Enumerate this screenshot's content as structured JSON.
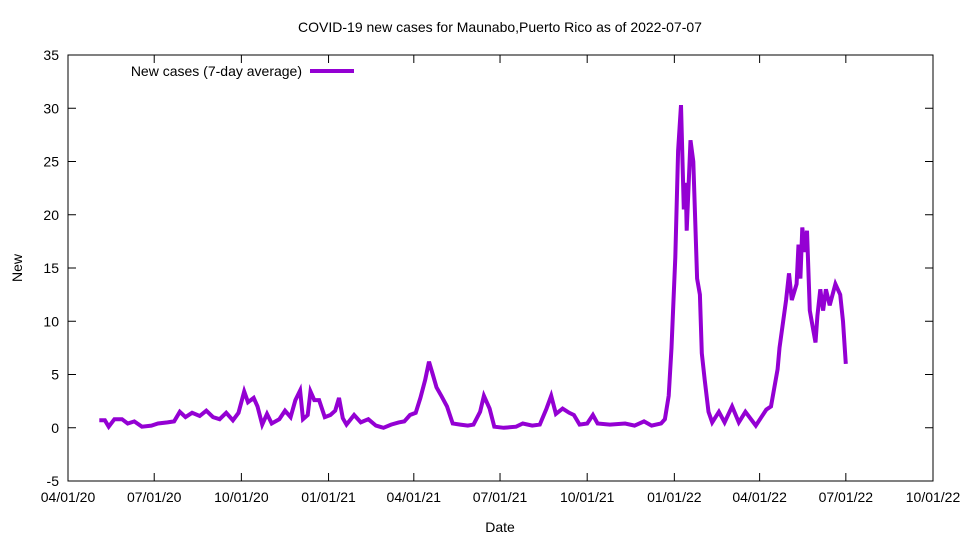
{
  "chart_data": {
    "type": "line",
    "title": "COVID-19 new cases for Maunabo,Puerto Rico as of 2022-07-07",
    "xlabel": "Date",
    "ylabel": "New",
    "xlim": [
      "2020-04-01",
      "2022-10-01"
    ],
    "ylim": [
      -5,
      35
    ],
    "x_ticks": [
      {
        "date": "2020-04-01",
        "label": "04/01/20"
      },
      {
        "date": "2020-07-01",
        "label": "07/01/20"
      },
      {
        "date": "2020-10-01",
        "label": "10/01/20"
      },
      {
        "date": "2021-01-01",
        "label": "01/01/21"
      },
      {
        "date": "2021-04-01",
        "label": "04/01/21"
      },
      {
        "date": "2021-07-01",
        "label": "07/01/21"
      },
      {
        "date": "2021-10-01",
        "label": "10/01/21"
      },
      {
        "date": "2022-01-01",
        "label": "01/01/22"
      },
      {
        "date": "2022-04-01",
        "label": "04/01/22"
      },
      {
        "date": "2022-07-01",
        "label": "07/01/22"
      },
      {
        "date": "2022-10-01",
        "label": "10/01/22"
      }
    ],
    "y_ticks": [
      -5,
      0,
      5,
      10,
      15,
      20,
      25,
      30,
      35
    ],
    "grid": false,
    "legend_position": "top-left",
    "series": [
      {
        "name": "New cases (7-day average)",
        "color": "#9400d3",
        "points": [
          [
            "2020-05-04",
            0.7
          ],
          [
            "2020-05-10",
            0.7
          ],
          [
            "2020-05-14",
            0.1
          ],
          [
            "2020-05-20",
            0.8
          ],
          [
            "2020-05-28",
            0.8
          ],
          [
            "2020-06-03",
            0.4
          ],
          [
            "2020-06-10",
            0.6
          ],
          [
            "2020-06-18",
            0.1
          ],
          [
            "2020-06-28",
            0.2
          ],
          [
            "2020-07-05",
            0.4
          ],
          [
            "2020-07-15",
            0.5
          ],
          [
            "2020-07-22",
            0.6
          ],
          [
            "2020-07-28",
            1.5
          ],
          [
            "2020-08-03",
            1.0
          ],
          [
            "2020-08-10",
            1.4
          ],
          [
            "2020-08-18",
            1.1
          ],
          [
            "2020-08-25",
            1.6
          ],
          [
            "2020-09-01",
            1.0
          ],
          [
            "2020-09-08",
            0.8
          ],
          [
            "2020-09-15",
            1.4
          ],
          [
            "2020-09-22",
            0.7
          ],
          [
            "2020-09-28",
            1.4
          ],
          [
            "2020-10-04",
            3.4
          ],
          [
            "2020-10-08",
            2.4
          ],
          [
            "2020-10-14",
            2.8
          ],
          [
            "2020-10-18",
            2.0
          ],
          [
            "2020-10-23",
            0.3
          ],
          [
            "2020-10-28",
            1.3
          ],
          [
            "2020-11-02",
            0.4
          ],
          [
            "2020-11-10",
            0.8
          ],
          [
            "2020-11-16",
            1.6
          ],
          [
            "2020-11-22",
            1.0
          ],
          [
            "2020-11-27",
            2.6
          ],
          [
            "2020-12-02",
            3.5
          ],
          [
            "2020-12-05",
            0.8
          ],
          [
            "2020-12-10",
            1.2
          ],
          [
            "2020-12-13",
            3.4
          ],
          [
            "2020-12-17",
            2.6
          ],
          [
            "2020-12-22",
            2.6
          ],
          [
            "2020-12-28",
            1.0
          ],
          [
            "2021-01-03",
            1.2
          ],
          [
            "2021-01-08",
            1.6
          ],
          [
            "2021-01-12",
            2.8
          ],
          [
            "2021-01-16",
            0.9
          ],
          [
            "2021-01-20",
            0.3
          ],
          [
            "2021-01-28",
            1.2
          ],
          [
            "2021-02-04",
            0.5
          ],
          [
            "2021-02-12",
            0.8
          ],
          [
            "2021-02-20",
            0.2
          ],
          [
            "2021-02-28",
            0.0
          ],
          [
            "2021-03-08",
            0.3
          ],
          [
            "2021-03-16",
            0.5
          ],
          [
            "2021-03-22",
            0.6
          ],
          [
            "2021-03-28",
            1.2
          ],
          [
            "2021-04-03",
            1.4
          ],
          [
            "2021-04-08",
            2.8
          ],
          [
            "2021-04-13",
            4.5
          ],
          [
            "2021-04-17",
            6.2
          ],
          [
            "2021-04-21",
            5.0
          ],
          [
            "2021-04-25",
            3.8
          ],
          [
            "2021-04-30",
            3.0
          ],
          [
            "2021-05-06",
            2.0
          ],
          [
            "2021-05-12",
            0.4
          ],
          [
            "2021-05-20",
            0.3
          ],
          [
            "2021-05-28",
            0.2
          ],
          [
            "2021-06-03",
            0.3
          ],
          [
            "2021-06-10",
            1.5
          ],
          [
            "2021-06-14",
            3.0
          ],
          [
            "2021-06-20",
            1.8
          ],
          [
            "2021-06-25",
            0.1
          ],
          [
            "2021-07-05",
            0.0
          ],
          [
            "2021-07-18",
            0.1
          ],
          [
            "2021-07-25",
            0.4
          ],
          [
            "2021-08-04",
            0.2
          ],
          [
            "2021-08-12",
            0.3
          ],
          [
            "2021-08-19",
            1.8
          ],
          [
            "2021-08-24",
            3.0
          ],
          [
            "2021-08-29",
            1.3
          ],
          [
            "2021-09-05",
            1.8
          ],
          [
            "2021-09-12",
            1.4
          ],
          [
            "2021-09-17",
            1.2
          ],
          [
            "2021-09-23",
            0.3
          ],
          [
            "2021-10-01",
            0.4
          ],
          [
            "2021-10-07",
            1.2
          ],
          [
            "2021-10-12",
            0.4
          ],
          [
            "2021-10-25",
            0.3
          ],
          [
            "2021-11-10",
            0.4
          ],
          [
            "2021-11-20",
            0.2
          ],
          [
            "2021-11-30",
            0.6
          ],
          [
            "2021-12-08",
            0.2
          ],
          [
            "2021-12-18",
            0.4
          ],
          [
            "2021-12-22",
            0.8
          ],
          [
            "2021-12-26",
            3.0
          ],
          [
            "2021-12-29",
            7.5
          ],
          [
            "2022-01-02",
            16
          ],
          [
            "2022-01-05",
            26
          ],
          [
            "2022-01-08",
            30.3
          ],
          [
            "2022-01-11",
            20.5
          ],
          [
            "2022-01-13",
            23
          ],
          [
            "2022-01-14",
            18.5
          ],
          [
            "2022-01-18",
            27
          ],
          [
            "2022-01-21",
            25
          ],
          [
            "2022-01-25",
            14
          ],
          [
            "2022-01-28",
            12.5
          ],
          [
            "2022-01-30",
            7
          ],
          [
            "2022-02-02",
            4.5
          ],
          [
            "2022-02-06",
            1.5
          ],
          [
            "2022-02-10",
            0.5
          ],
          [
            "2022-02-17",
            1.5
          ],
          [
            "2022-02-23",
            0.5
          ],
          [
            "2022-03-03",
            2.0
          ],
          [
            "2022-03-10",
            0.5
          ],
          [
            "2022-03-17",
            1.5
          ],
          [
            "2022-03-28",
            0.2
          ],
          [
            "2022-04-08",
            1.7
          ],
          [
            "2022-04-13",
            2.0
          ],
          [
            "2022-04-20",
            5.5
          ],
          [
            "2022-04-22",
            7.5
          ],
          [
            "2022-04-29",
            12
          ],
          [
            "2022-05-02",
            14.5
          ],
          [
            "2022-05-05",
            12
          ],
          [
            "2022-05-10",
            13.5
          ],
          [
            "2022-05-12",
            17.2
          ],
          [
            "2022-05-14",
            14
          ],
          [
            "2022-05-16",
            18.8
          ],
          [
            "2022-05-19",
            16.5
          ],
          [
            "2022-05-21",
            18.5
          ],
          [
            "2022-05-24",
            11
          ],
          [
            "2022-05-30",
            8
          ],
          [
            "2022-06-01",
            10.5
          ],
          [
            "2022-06-04",
            13
          ],
          [
            "2022-06-07",
            11
          ],
          [
            "2022-06-10",
            13
          ],
          [
            "2022-06-14",
            11.5
          ],
          [
            "2022-06-20",
            13.5
          ],
          [
            "2022-06-25",
            12.5
          ],
          [
            "2022-06-28",
            10
          ],
          [
            "2022-07-01",
            6
          ]
        ]
      }
    ]
  }
}
